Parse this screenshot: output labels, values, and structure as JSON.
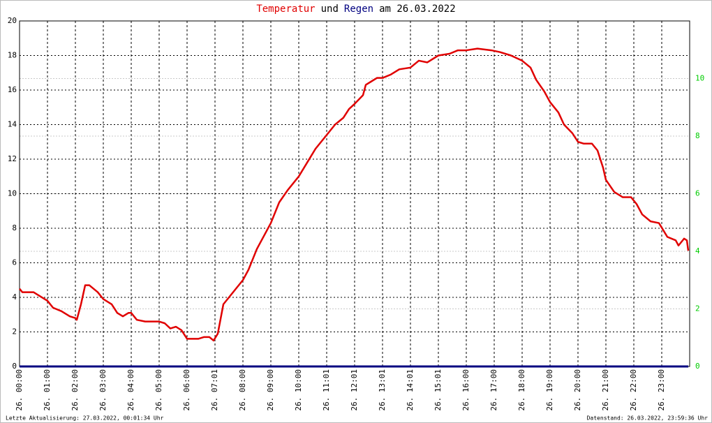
{
  "chart_data": {
    "type": "line",
    "title_parts": [
      {
        "text": "Temperatur",
        "color": "#e00000"
      },
      {
        "text": "und",
        "color": "#000000"
      },
      {
        "text": "Regen",
        "color": "#000080"
      },
      {
        "text": "am 26.03.2022",
        "color": "#000000"
      }
    ],
    "footer_left": "Letzte Aktualisierung: 27.03.2022, 00:01:34 Uhr",
    "footer_right": "Datenstand: 26.03.2022, 23:59:36 Uhr",
    "xlim": [
      0,
      24
    ],
    "xticks": [
      {
        "value": 0,
        "label": "26. 00:00"
      },
      {
        "value": 1,
        "label": "26. 01:00"
      },
      {
        "value": 2,
        "label": "26. 02:00"
      },
      {
        "value": 3,
        "label": "26. 03:00"
      },
      {
        "value": 4,
        "label": "26. 04:00"
      },
      {
        "value": 5,
        "label": "26. 05:00"
      },
      {
        "value": 6,
        "label": "26. 06:00"
      },
      {
        "value": 7,
        "label": "26. 07:01"
      },
      {
        "value": 8,
        "label": "26. 08:00"
      },
      {
        "value": 9,
        "label": "26. 09:00"
      },
      {
        "value": 10,
        "label": "26. 10:00"
      },
      {
        "value": 11,
        "label": "26. 11:01"
      },
      {
        "value": 12,
        "label": "26. 12:01"
      },
      {
        "value": 13,
        "label": "26. 13:01"
      },
      {
        "value": 14,
        "label": "26. 14:01"
      },
      {
        "value": 15,
        "label": "26. 15:01"
      },
      {
        "value": 16,
        "label": "26. 16:00"
      },
      {
        "value": 17,
        "label": "26. 17:00"
      },
      {
        "value": 18,
        "label": "26. 18:00"
      },
      {
        "value": 19,
        "label": "26. 19:00"
      },
      {
        "value": 20,
        "label": "26. 20:00"
      },
      {
        "value": 21,
        "label": "26. 21:00"
      },
      {
        "value": 22,
        "label": "26. 22:00"
      },
      {
        "value": 23,
        "label": "26. 23:00"
      }
    ],
    "ylim": [
      0,
      20
    ],
    "yticks": [
      0,
      2,
      4,
      6,
      8,
      10,
      12,
      14,
      16,
      18,
      20
    ],
    "y2lim": [
      0,
      12
    ],
    "y2ticks": [
      0,
      2,
      4,
      6,
      8,
      10
    ],
    "y2tick_color": "#00cc00",
    "grid": true,
    "series": [
      {
        "name": "Temperatur",
        "color": "#e00000",
        "x": [
          0,
          0.1,
          0.5,
          0.6,
          1.0,
          1.2,
          1.5,
          1.8,
          2.0,
          2.05,
          2.2,
          2.35,
          2.5,
          2.8,
          3.0,
          3.3,
          3.5,
          3.7,
          3.9,
          4.0,
          4.2,
          4.5,
          5.0,
          5.2,
          5.4,
          5.6,
          5.8,
          6.0,
          6.4,
          6.6,
          6.8,
          6.95,
          7.1,
          7.3,
          7.5,
          7.8,
          8.0,
          8.2,
          8.5,
          8.8,
          9.0,
          9.3,
          9.6,
          10.0,
          10.3,
          10.6,
          11.0,
          11.3,
          11.6,
          11.8,
          12.0,
          12.3,
          12.4,
          12.6,
          12.8,
          13.0,
          13.3,
          13.6,
          14.0,
          14.3,
          14.6,
          15.0,
          15.4,
          15.7,
          16.0,
          16.4,
          16.9,
          17.2,
          17.6,
          18.0,
          18.3,
          18.5,
          18.8,
          19.0,
          19.3,
          19.5,
          19.8,
          20.0,
          20.2,
          20.5,
          20.7,
          20.9,
          21.0,
          21.3,
          21.6,
          21.9,
          22.1,
          22.3,
          22.6,
          22.9,
          23.2,
          23.5,
          23.6,
          23.8,
          23.9,
          23.95
        ],
        "values": [
          4.5,
          4.3,
          4.3,
          4.2,
          3.8,
          3.4,
          3.2,
          2.9,
          2.8,
          2.7,
          3.6,
          4.7,
          4.7,
          4.3,
          3.9,
          3.6,
          3.1,
          2.9,
          3.1,
          3.1,
          2.7,
          2.6,
          2.6,
          2.5,
          2.2,
          2.3,
          2.1,
          1.6,
          1.6,
          1.7,
          1.7,
          1.5,
          1.9,
          3.6,
          4.0,
          4.6,
          5.0,
          5.6,
          6.8,
          7.7,
          8.3,
          9.5,
          10.2,
          11.0,
          11.8,
          12.6,
          13.4,
          14.0,
          14.4,
          14.9,
          15.2,
          15.7,
          16.3,
          16.5,
          16.7,
          16.7,
          16.9,
          17.2,
          17.3,
          17.7,
          17.6,
          18.0,
          18.1,
          18.3,
          18.3,
          18.4,
          18.3,
          18.2,
          18.0,
          17.7,
          17.3,
          16.6,
          15.9,
          15.3,
          14.7,
          14.0,
          13.5,
          13.0,
          12.9,
          12.9,
          12.5,
          11.5,
          10.8,
          10.1,
          9.8,
          9.8,
          9.4,
          8.8,
          8.4,
          8.3,
          7.5,
          7.3,
          7.0,
          7.4,
          7.3,
          6.7
        ]
      },
      {
        "name": "Regen",
        "color": "#000080",
        "axis": "y2",
        "x": [
          0,
          23.95
        ],
        "values": [
          0,
          0
        ]
      }
    ]
  }
}
